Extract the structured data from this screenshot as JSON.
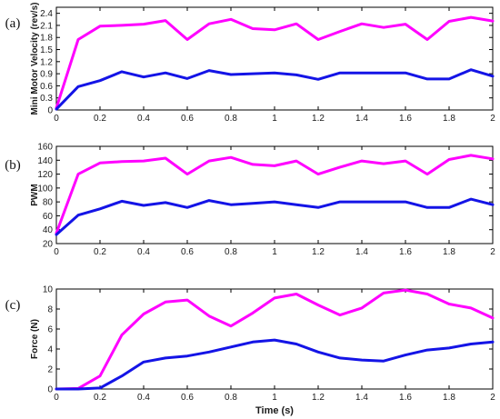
{
  "colors": {
    "series_magenta": "#ff00ff",
    "series_blue": "#1414e6",
    "axes": "#000000"
  },
  "chart_data": [
    {
      "type": "line",
      "panel_label": "(a)",
      "ylabel": "Mini Motor Velocity (rev/s)",
      "xlabel": "",
      "xlim": [
        0,
        2
      ],
      "ylim": [
        0,
        2.55
      ],
      "xticks": [
        0,
        0.2,
        0.4,
        0.6,
        0.8,
        1,
        1.2,
        1.4,
        1.6,
        1.8,
        2
      ],
      "yticks": [
        0,
        0.3,
        0.6,
        0.9,
        1.2,
        1.5,
        1.8,
        2.1,
        2.4
      ],
      "x": [
        0,
        0.1,
        0.2,
        0.3,
        0.4,
        0.5,
        0.6,
        0.7,
        0.8,
        0.9,
        1.0,
        1.1,
        1.2,
        1.3,
        1.4,
        1.5,
        1.6,
        1.7,
        1.8,
        1.9,
        2.0
      ],
      "series": [
        {
          "color": "#ff00ff",
          "values": [
            0.05,
            1.75,
            2.08,
            2.1,
            2.13,
            2.22,
            1.75,
            2.14,
            2.25,
            2.02,
            1.99,
            2.14,
            1.75,
            1.95,
            2.14,
            2.05,
            2.13,
            1.75,
            2.2,
            2.3,
            2.21
          ]
        },
        {
          "color": "#1414e6",
          "values": [
            0.02,
            0.58,
            0.73,
            0.95,
            0.82,
            0.92,
            0.78,
            0.98,
            0.88,
            0.9,
            0.92,
            0.87,
            0.76,
            0.92,
            0.92,
            0.92,
            0.92,
            0.77,
            0.77,
            1.0,
            0.84
          ]
        }
      ]
    },
    {
      "type": "line",
      "panel_label": "(b)",
      "ylabel": "PWM",
      "xlabel": "",
      "xlim": [
        0,
        2
      ],
      "ylim": [
        20,
        160
      ],
      "xticks": [
        0,
        0.2,
        0.4,
        0.6,
        0.8,
        1,
        1.2,
        1.4,
        1.6,
        1.8,
        2
      ],
      "yticks": [
        20,
        40,
        60,
        80,
        100,
        120,
        140,
        160
      ],
      "x": [
        0,
        0.1,
        0.2,
        0.3,
        0.4,
        0.5,
        0.6,
        0.7,
        0.8,
        0.9,
        1.0,
        1.1,
        1.2,
        1.3,
        1.4,
        1.5,
        1.6,
        1.7,
        1.8,
        1.9,
        2.0
      ],
      "series": [
        {
          "color": "#ff00ff",
          "values": [
            35,
            120,
            136,
            138,
            139,
            143,
            120,
            139,
            144,
            134,
            132,
            139,
            120,
            130,
            139,
            135,
            139,
            120,
            141,
            147,
            142
          ]
        },
        {
          "color": "#1414e6",
          "values": [
            33,
            61,
            70,
            81,
            75,
            79,
            72,
            82,
            76,
            78,
            80,
            76,
            72,
            80,
            80,
            80,
            80,
            72,
            72,
            84,
            76
          ]
        }
      ]
    },
    {
      "type": "line",
      "panel_label": "(c)",
      "ylabel": "Force (N)",
      "xlabel": "Time (s)",
      "xlim": [
        0,
        2
      ],
      "ylim": [
        0,
        10
      ],
      "xticks": [
        0,
        0.2,
        0.4,
        0.6,
        0.8,
        1,
        1.2,
        1.4,
        1.6,
        1.8,
        2
      ],
      "yticks": [
        0,
        2,
        4,
        6,
        8,
        10
      ],
      "x": [
        0,
        0.1,
        0.2,
        0.3,
        0.4,
        0.5,
        0.6,
        0.7,
        0.8,
        0.9,
        1.0,
        1.1,
        1.2,
        1.3,
        1.4,
        1.5,
        1.6,
        1.7,
        1.8,
        1.9,
        2.0
      ],
      "series": [
        {
          "color": "#ff00ff",
          "values": [
            0,
            0.05,
            1.3,
            5.4,
            7.5,
            8.7,
            8.9,
            7.3,
            6.3,
            7.6,
            9.1,
            9.5,
            8.4,
            7.4,
            8.1,
            9.6,
            9.9,
            9.5,
            8.5,
            8.1,
            7.1
          ]
        },
        {
          "color": "#1414e6",
          "values": [
            0,
            0,
            0.1,
            1.3,
            2.7,
            3.1,
            3.3,
            3.7,
            4.2,
            4.7,
            4.9,
            4.5,
            3.7,
            3.1,
            2.9,
            2.8,
            3.4,
            3.9,
            4.1,
            4.5,
            4.7
          ]
        }
      ]
    }
  ]
}
